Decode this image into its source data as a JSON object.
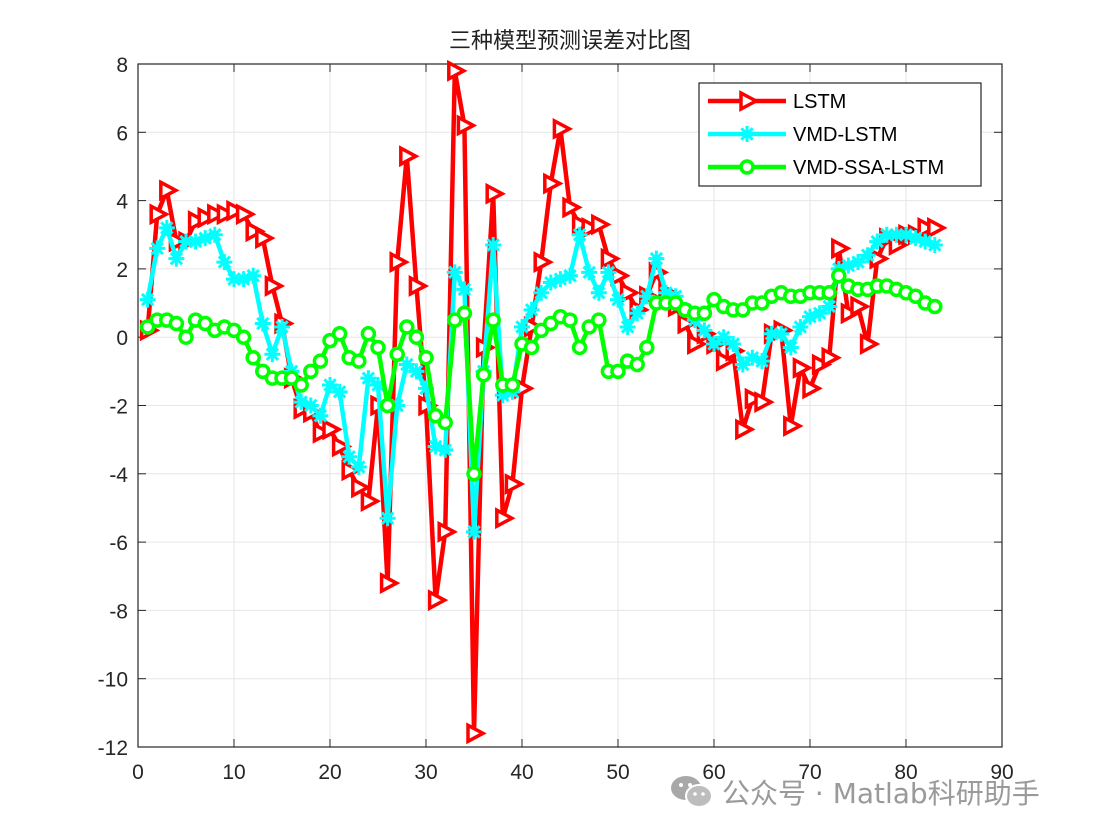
{
  "chart_data": {
    "type": "line",
    "title": "三种模型预测误差对比图",
    "xlabel": "",
    "ylabel": "",
    "xlim": [
      0,
      90
    ],
    "ylim": [
      -12,
      8
    ],
    "xticks": [
      0,
      10,
      20,
      30,
      40,
      50,
      60,
      70,
      80,
      90
    ],
    "yticks": [
      8,
      6,
      4,
      2,
      0,
      -2,
      -4,
      -6,
      -8,
      -10,
      -12
    ],
    "grid": true,
    "legend_position": "northeast",
    "x": [
      1,
      2,
      3,
      4,
      5,
      6,
      7,
      8,
      9,
      10,
      11,
      12,
      13,
      14,
      15,
      16,
      17,
      18,
      19,
      20,
      21,
      22,
      23,
      24,
      25,
      26,
      27,
      28,
      29,
      30,
      31,
      32,
      33,
      34,
      35,
      36,
      37,
      38,
      39,
      40,
      41,
      42,
      43,
      44,
      45,
      46,
      47,
      48,
      49,
      50,
      51,
      52,
      53,
      54,
      55,
      56,
      57,
      58,
      59,
      60,
      61,
      62,
      63,
      64,
      65,
      66,
      67,
      68,
      69,
      70,
      71,
      72,
      73,
      74,
      75,
      76,
      77,
      78,
      79,
      80,
      81,
      82,
      83
    ],
    "series": [
      {
        "name": "LSTM",
        "color": "#ff0000",
        "marker": "triangle-right",
        "values": [
          0.2,
          3.6,
          4.3,
          2.8,
          2.8,
          3.4,
          3.5,
          3.6,
          3.6,
          3.7,
          3.6,
          3.1,
          2.9,
          1.5,
          0.4,
          -1.2,
          -2.1,
          -2.2,
          -2.8,
          -2.7,
          -3.2,
          -3.9,
          -4.4,
          -4.8,
          -2.0,
          -7.2,
          2.2,
          5.3,
          1.5,
          -2.0,
          -7.7,
          -5.7,
          7.8,
          6.2,
          -11.6,
          -0.3,
          4.2,
          -5.3,
          -4.3,
          -1.5,
          0.3,
          2.2,
          4.5,
          6.1,
          3.8,
          3.3,
          3.2,
          3.3,
          2.3,
          1.8,
          1.3,
          0.8,
          1.2,
          1.9,
          1.3,
          0.9,
          0.4,
          -0.2,
          0.1,
          -0.2,
          -0.7,
          -0.4,
          -2.7,
          -1.8,
          -1.9,
          0.1,
          0.2,
          -2.6,
          -0.9,
          -1.5,
          -0.8,
          -0.6,
          2.6,
          0.7,
          0.9,
          -0.2,
          2.3,
          2.9,
          2.7,
          3.0,
          3.0,
          3.2,
          3.2
        ]
      },
      {
        "name": "VMD-LSTM",
        "color": "#00ffff",
        "marker": "asterisk",
        "values": [
          1.1,
          2.6,
          3.2,
          2.3,
          2.8,
          2.8,
          2.9,
          3.0,
          2.2,
          1.7,
          1.7,
          1.8,
          0.4,
          -0.5,
          0.3,
          -1.0,
          -1.9,
          -2.0,
          -2.3,
          -1.4,
          -1.6,
          -3.5,
          -3.8,
          -1.2,
          -1.4,
          -5.3,
          -2.0,
          -0.8,
          -1.0,
          -1.5,
          -3.2,
          -3.3,
          1.9,
          1.4,
          -5.7,
          -1.0,
          2.7,
          -1.7,
          -1.6,
          0.3,
          0.8,
          1.3,
          1.6,
          1.7,
          1.8,
          3.0,
          1.9,
          1.3,
          1.9,
          1.1,
          0.3,
          0.7,
          1.2,
          2.3,
          1.3,
          1.2,
          0.8,
          0.5,
          0.2,
          -0.2,
          0.0,
          -0.2,
          -0.8,
          -0.6,
          -0.7,
          0.1,
          0.1,
          -0.3,
          0.3,
          0.6,
          0.7,
          0.9,
          2.0,
          2.1,
          2.2,
          2.4,
          2.8,
          3.0,
          3.0,
          3.0,
          2.9,
          2.8,
          2.7
        ]
      },
      {
        "name": "VMD-SSA-LSTM",
        "color": "#00ff00",
        "marker": "circle",
        "values": [
          0.3,
          0.5,
          0.5,
          0.4,
          0.0,
          0.5,
          0.4,
          0.2,
          0.3,
          0.2,
          0.0,
          -0.6,
          -1.0,
          -1.2,
          -1.2,
          -1.2,
          -1.4,
          -1.0,
          -0.7,
          -0.1,
          0.1,
          -0.6,
          -0.7,
          0.1,
          -0.3,
          -2.0,
          -0.5,
          0.3,
          0.0,
          -0.6,
          -2.3,
          -2.5,
          0.5,
          0.7,
          -4.0,
          -1.1,
          0.5,
          -1.4,
          -1.4,
          -0.2,
          -0.3,
          0.2,
          0.4,
          0.6,
          0.5,
          -0.3,
          0.3,
          0.5,
          -1.0,
          -1.0,
          -0.7,
          -0.8,
          -0.3,
          1.0,
          1.0,
          1.0,
          0.8,
          0.7,
          0.7,
          1.1,
          0.9,
          0.8,
          0.8,
          1.0,
          1.0,
          1.2,
          1.3,
          1.2,
          1.2,
          1.3,
          1.3,
          1.3,
          1.8,
          1.5,
          1.4,
          1.4,
          1.5,
          1.5,
          1.4,
          1.3,
          1.2,
          1.0,
          0.9
        ]
      }
    ]
  },
  "watermark": {
    "icon": "wechat-icon",
    "text": "公众号 · Matlab科研助手"
  }
}
